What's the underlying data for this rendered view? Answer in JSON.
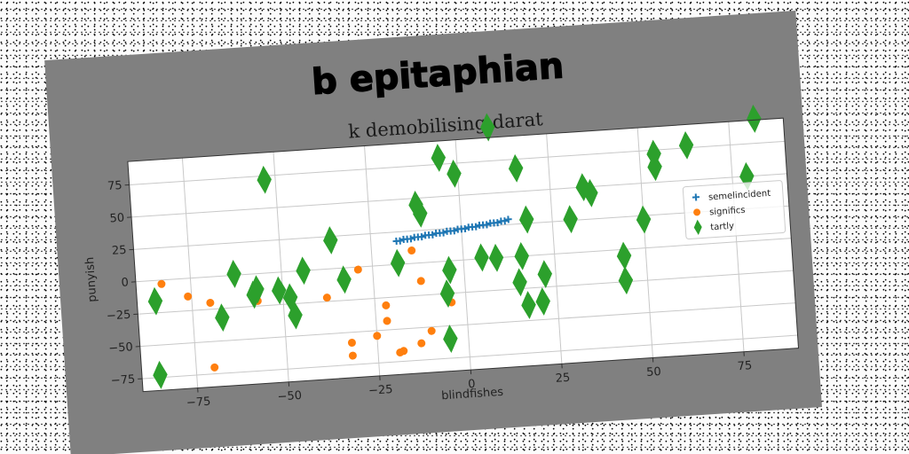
{
  "chart_data": {
    "type": "scatter",
    "title": "b epitaphian",
    "subtitle": "k demobilising darat",
    "xlabel": "blindfishes",
    "ylabel": "punyish",
    "xlim": [
      -90,
      90
    ],
    "ylim": [
      -85,
      93
    ],
    "xticks": [
      -75,
      -50,
      -25,
      0,
      25,
      50,
      75
    ],
    "yticks": [
      -75,
      -50,
      -25,
      0,
      25,
      50,
      75
    ],
    "grid": true,
    "legend_position": "right",
    "series": [
      {
        "name": "semelincident",
        "marker": "plus",
        "color": "#1f77b4",
        "points": [
          [
            -18,
            18
          ],
          [
            -17,
            18
          ],
          [
            -16,
            19
          ],
          [
            -15,
            19
          ],
          [
            -14,
            19
          ],
          [
            -13,
            20
          ],
          [
            -12,
            20
          ],
          [
            -11,
            20
          ],
          [
            -10,
            21
          ],
          [
            -9,
            21
          ],
          [
            -8,
            21
          ],
          [
            -7,
            22
          ],
          [
            -6,
            22
          ],
          [
            -5,
            22
          ],
          [
            -4,
            23
          ],
          [
            -3,
            23
          ],
          [
            -2,
            23
          ],
          [
            -1,
            24
          ],
          [
            0,
            24
          ],
          [
            1,
            24
          ],
          [
            2,
            25
          ],
          [
            3,
            25
          ],
          [
            4,
            25
          ],
          [
            5,
            26
          ],
          [
            6,
            26
          ],
          [
            7,
            26
          ],
          [
            8,
            27
          ],
          [
            9,
            27
          ],
          [
            10,
            27
          ],
          [
            11,
            28
          ],
          [
            12,
            28
          ],
          [
            13,
            29
          ]
        ]
      },
      {
        "name": "significs",
        "marker": "circle",
        "color": "#ff7f0e",
        "points": [
          [
            -83,
            -3
          ],
          [
            -76,
            -14
          ],
          [
            -70,
            -20
          ],
          [
            -70,
            -70
          ],
          [
            -57,
            -21
          ],
          [
            -38,
            -22
          ],
          [
            -32,
            -58
          ],
          [
            -32,
            -68
          ],
          [
            -29,
            -2
          ],
          [
            -25,
            -54
          ],
          [
            -22,
            -43
          ],
          [
            -22,
            -31
          ],
          [
            -19,
            -68
          ],
          [
            -18,
            -67
          ],
          [
            -14,
            10
          ],
          [
            -13,
            -62
          ],
          [
            -12,
            -14
          ],
          [
            -10,
            -53
          ],
          [
            -4,
            -32
          ]
        ]
      },
      {
        "name": "tartly",
        "marker": "diamond",
        "color": "#2ca02c",
        "points": [
          [
            -85,
            -16
          ],
          [
            -85,
            -73
          ],
          [
            -67,
            -32
          ],
          [
            -63,
            1
          ],
          [
            -58,
            -16
          ],
          [
            -57,
            -12
          ],
          [
            -53,
            72
          ],
          [
            -51,
            -14
          ],
          [
            -48,
            -20
          ],
          [
            -47,
            -34
          ],
          [
            -44,
            0
          ],
          [
            -36,
            22
          ],
          [
            -33,
            -9
          ],
          [
            -18,
            1
          ],
          [
            -12,
            45
          ],
          [
            -11,
            38
          ],
          [
            -5,
            80
          ],
          [
            -5,
            -25
          ],
          [
            -5,
            -60
          ],
          [
            -4,
            -7
          ],
          [
            -1,
            67
          ],
          [
            5,
            1
          ],
          [
            9,
            0
          ],
          [
            9,
            101
          ],
          [
            15,
            -20
          ],
          [
            16,
            0
          ],
          [
            16,
            68
          ],
          [
            17,
            -38
          ],
          [
            18,
            28
          ],
          [
            21,
            -36
          ],
          [
            22,
            -15
          ],
          [
            30,
            26
          ],
          [
            34,
            50
          ],
          [
            36,
            45
          ],
          [
            44,
            -5
          ],
          [
            44,
            -24
          ],
          [
            50,
            22
          ],
          [
            54,
            62
          ],
          [
            54,
            72
          ],
          [
            63,
            77
          ],
          [
            79,
            50
          ],
          [
            82,
            94
          ]
        ]
      }
    ]
  }
}
